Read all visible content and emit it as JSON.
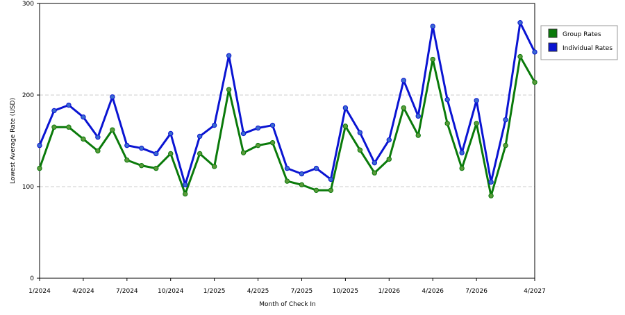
{
  "chart_data": {
    "type": "line",
    "x_label": "Month of Check In",
    "y_label": "Lowest Average Rate (USD)",
    "categories": [
      "1/2024",
      null,
      null,
      "4/2024",
      null,
      null,
      "7/2024",
      null,
      null,
      "10/2024",
      null,
      null,
      "1/2025",
      null,
      null,
      "4/2025",
      null,
      null,
      "7/2025",
      null,
      null,
      "10/2025",
      null,
      null,
      "1/2026",
      null,
      null,
      "4/2026",
      null,
      null,
      "7/2026",
      null,
      null,
      null,
      "4/2027"
    ],
    "series": [
      {
        "name": "Group Rates",
        "color": "#0a7a0a",
        "marker_color": "#5a9a3a",
        "values": [
          120,
          165,
          165,
          152,
          139,
          162,
          129,
          123,
          120,
          136,
          92,
          136,
          122,
          206,
          137,
          145,
          148,
          106,
          102,
          96,
          96,
          166,
          140,
          115,
          130,
          186,
          156,
          239,
          169,
          120,
          169,
          90,
          145,
          242,
          214
        ]
      },
      {
        "name": "Individual Rates",
        "color": "#0a14d2",
        "marker_color": "#3a6ad0",
        "values": [
          145,
          183,
          189,
          176,
          154,
          198,
          145,
          142,
          136,
          158,
          102,
          155,
          167,
          243,
          158,
          164,
          167,
          120,
          114,
          120,
          108,
          186,
          159,
          126,
          151,
          216,
          177,
          275,
          195,
          137,
          194,
          105,
          173,
          279,
          247
        ]
      }
    ],
    "ylim": [
      0,
      300
    ],
    "yticks": [
      0,
      100,
      200,
      300
    ],
    "grid": true,
    "legend": "right"
  }
}
